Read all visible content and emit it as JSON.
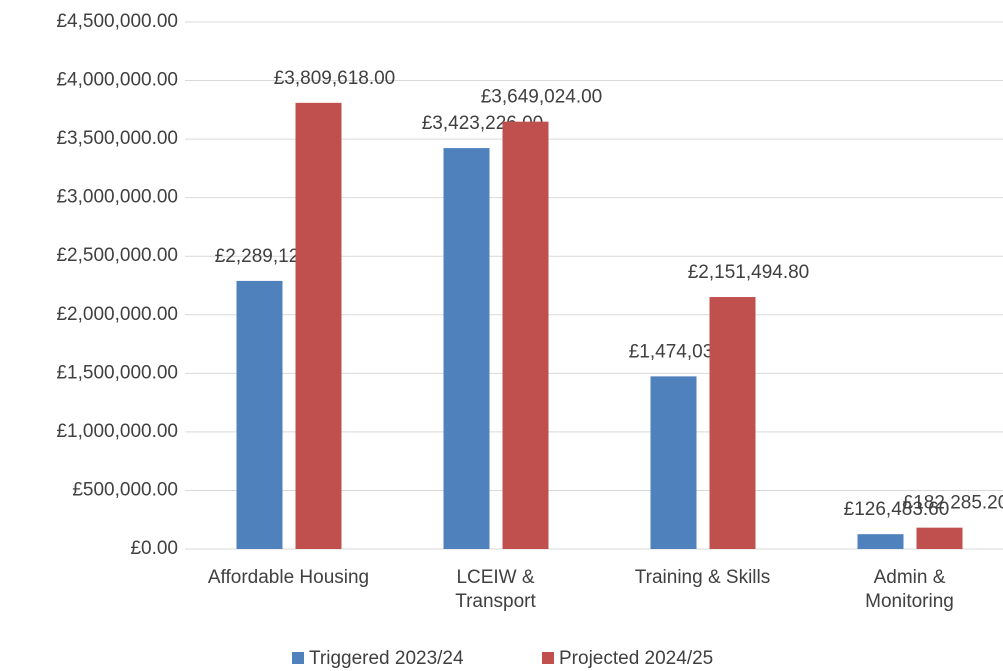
{
  "chart_data": {
    "type": "bar",
    "categories": [
      "Affordable Housing",
      "LCEIW &\nTransport",
      "Training & Skills",
      "Admin &\nMonitoring"
    ],
    "series": [
      {
        "name": "Triggered 2023/24",
        "color": "#4f81bd",
        "values": [
          2289128.5,
          3423226,
          1474039.9,
          126483.6
        ],
        "value_labels": [
          "£2,289,128.50",
          "£3,423,226.00",
          "£1,474,039.90",
          "£126,483.60"
        ]
      },
      {
        "name": "Projected 2024/25",
        "color": "#c0504d",
        "values": [
          3809618,
          3649024,
          2151494.8,
          182285.2
        ],
        "value_labels": [
          "£3,809,618.00",
          "£3,649,024.00",
          "£2,151,494.80",
          "£182,285.20"
        ]
      }
    ],
    "ylim": [
      0,
      4500000
    ],
    "yticks": [
      {
        "value": 0,
        "label": "£0.00"
      },
      {
        "value": 500000,
        "label": "£500,000.00"
      },
      {
        "value": 1000000,
        "label": "£1,000,000.00"
      },
      {
        "value": 1500000,
        "label": "£1,500,000.00"
      },
      {
        "value": 2000000,
        "label": "£2,000,000.00"
      },
      {
        "value": 2500000,
        "label": "£2,500,000.00"
      },
      {
        "value": 3000000,
        "label": "£3,000,000.00"
      },
      {
        "value": 3500000,
        "label": "£3,500,000.00"
      },
      {
        "value": 4000000,
        "label": "£4,000,000.00"
      },
      {
        "value": 4500000,
        "label": "£4,500,000.00"
      }
    ],
    "grid": true,
    "legend": "bottom"
  }
}
